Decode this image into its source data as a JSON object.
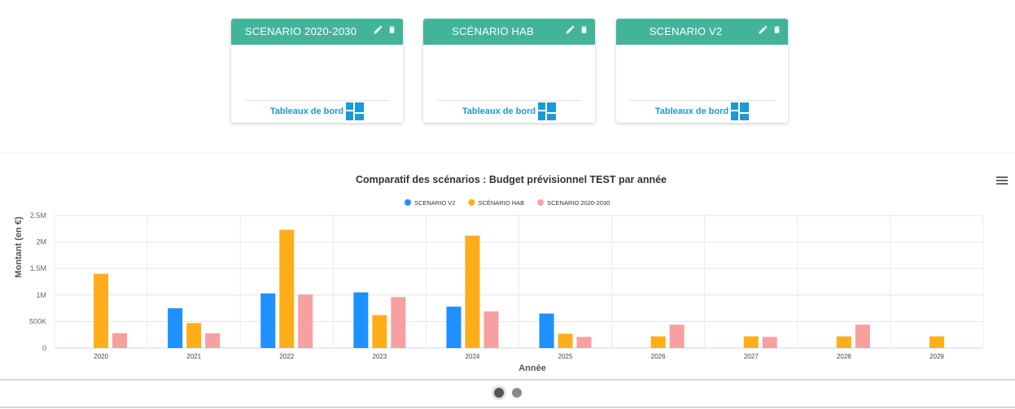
{
  "scenarios": [
    {
      "title": "SCENARIO 2020-2030",
      "link_label": "Tableaux de bord"
    },
    {
      "title": "SCÉNARIO HAB",
      "link_label": "Tableaux de bord"
    },
    {
      "title": "SCENARIO V2",
      "link_label": "Tableaux de bord"
    }
  ],
  "icons": {
    "edit": "pencil-icon",
    "delete": "trash-icon",
    "dashboard": "dashboard-icon",
    "menu": "hamburger-menu-icon"
  },
  "colors": {
    "header": "#42b49a",
    "link": "#1a9bd7",
    "series_v2": "#1e90ff",
    "series_hab": "#ffae1a",
    "series_2020": "#f7a0a0"
  },
  "pager": {
    "pages": 2,
    "active": 0
  },
  "chart_data": {
    "type": "bar",
    "title": "Comparatif des scénarios : Budget prévisionnel TEST par année",
    "xlabel": "Année",
    "ylabel": "Montant (en €)",
    "categories": [
      "2020",
      "2021",
      "2022",
      "2023",
      "2024",
      "2025",
      "2026",
      "2027",
      "2028",
      "2029"
    ],
    "series": [
      {
        "name": "SCENARIO V2",
        "color": "#1e90ff",
        "values": [
          0,
          750000,
          1030000,
          1050000,
          780000,
          650000,
          0,
          0,
          0,
          0
        ]
      },
      {
        "name": "SCÉNARIO HAB",
        "color": "#ffae1a",
        "values": [
          1400000,
          470000,
          2230000,
          620000,
          2120000,
          270000,
          220000,
          220000,
          220000,
          220000
        ]
      },
      {
        "name": "SCENARIO 2020-2030",
        "color": "#f7a0a0",
        "values": [
          280000,
          280000,
          1010000,
          960000,
          690000,
          210000,
          440000,
          210000,
          440000,
          0
        ]
      }
    ],
    "yticks": [
      {
        "v": 0,
        "label": "0"
      },
      {
        "v": 500000,
        "label": "500K"
      },
      {
        "v": 1000000,
        "label": "1M"
      },
      {
        "v": 1500000,
        "label": "1.5M"
      },
      {
        "v": 2000000,
        "label": "2M"
      },
      {
        "v": 2500000,
        "label": "2.5M"
      }
    ],
    "ylim": [
      0,
      2500000
    ],
    "grid": true,
    "legend": "top-center"
  }
}
